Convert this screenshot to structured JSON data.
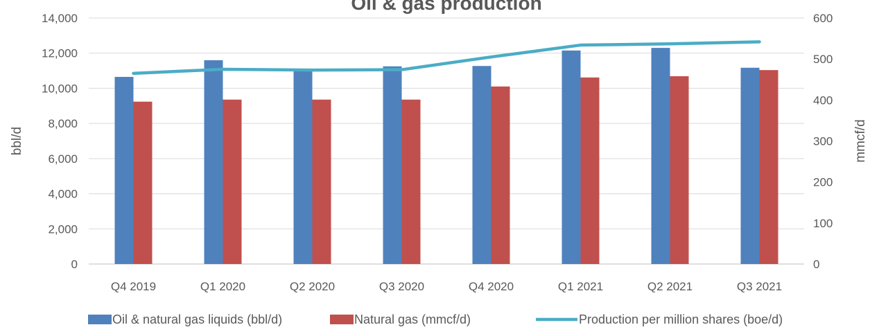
{
  "chart_data": {
    "type": "bar",
    "title": "Oil & gas production",
    "categories": [
      "Q4 2019",
      "Q1 2020",
      "Q2 2020",
      "Q3 2020",
      "Q4 2020",
      "Q1 2021",
      "Q2 2021",
      "Q3 2021"
    ],
    "ylabel_left": "bbl/d",
    "ylabel_right": "mmcf/d",
    "ylim_left": [
      0,
      14000
    ],
    "ylim_right": [
      0,
      600
    ],
    "yticks_left": [
      "0",
      "2,000",
      "4,000",
      "6,000",
      "8,000",
      "10,000",
      "12,000",
      "14,000"
    ],
    "yticks_right": [
      "0",
      "100",
      "200",
      "300",
      "400",
      "500",
      "600"
    ],
    "grid": true,
    "legend_position": "bottom",
    "series": [
      {
        "name": "Oil & natural gas liquids (bbl/d)",
        "kind": "bar",
        "axis": "left",
        "color": "#4f81bd",
        "values": [
          10650,
          11600,
          11050,
          11250,
          11270,
          12150,
          12300,
          11170
        ]
      },
      {
        "name": "Natural gas (mmcf/d)",
        "kind": "bar",
        "axis": "right",
        "color": "#c0504d",
        "values": [
          396,
          401,
          401,
          401,
          433,
          455,
          458,
          473
        ]
      },
      {
        "name": "Production per million shares (boe/d)",
        "kind": "line",
        "axis": "right",
        "color": "#4bacc6",
        "values": [
          465,
          475,
          473,
          474,
          505,
          534,
          537,
          542
        ]
      }
    ]
  }
}
